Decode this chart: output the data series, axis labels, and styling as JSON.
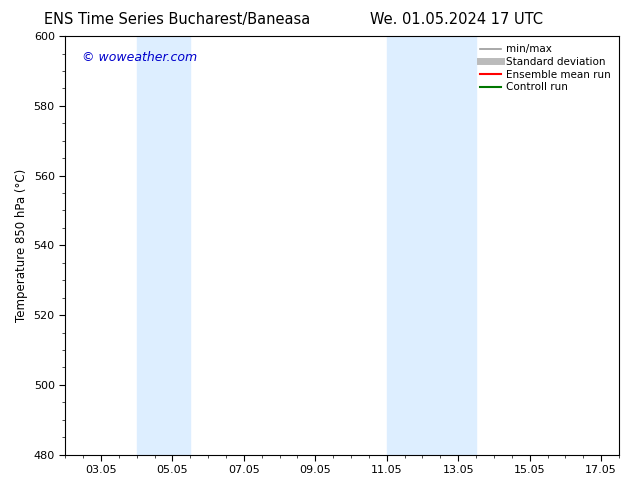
{
  "title_left": "ENS Time Series Bucharest/Baneasa",
  "title_right": "We. 01.05.2024 17 UTC",
  "ylabel": "Temperature 850 hPa (°C)",
  "watermark": "© woweather.com",
  "watermark_color": "#0000cc",
  "ylim": [
    480,
    600
  ],
  "yticks": [
    480,
    500,
    520,
    540,
    560,
    580,
    600
  ],
  "xlim": [
    2.0,
    17.5
  ],
  "xtick_labels": [
    "03.05",
    "05.05",
    "07.05",
    "09.05",
    "11.05",
    "13.05",
    "15.05",
    "17.05"
  ],
  "xtick_positions": [
    3,
    5,
    7,
    9,
    11,
    13,
    15,
    17
  ],
  "shaded_bands": [
    {
      "x_start": 4.0,
      "x_end": 5.5,
      "color": "#ddeeff"
    },
    {
      "x_start": 11.0,
      "x_end": 13.5,
      "color": "#ddeeff"
    }
  ],
  "legend_items": [
    {
      "label": "min/max",
      "color": "#999999",
      "lw": 1.2,
      "ls": "-"
    },
    {
      "label": "Standard deviation",
      "color": "#bbbbbb",
      "lw": 5,
      "ls": "-"
    },
    {
      "label": "Ensemble mean run",
      "color": "#ff0000",
      "lw": 1.5,
      "ls": "-"
    },
    {
      "label": "Controll run",
      "color": "#007700",
      "lw": 1.5,
      "ls": "-"
    }
  ],
  "bg_color": "#ffffff",
  "plot_bg_color": "#ffffff",
  "title_fontsize": 10.5,
  "axis_label_fontsize": 8.5,
  "tick_fontsize": 8,
  "watermark_fontsize": 9,
  "legend_fontsize": 7.5
}
